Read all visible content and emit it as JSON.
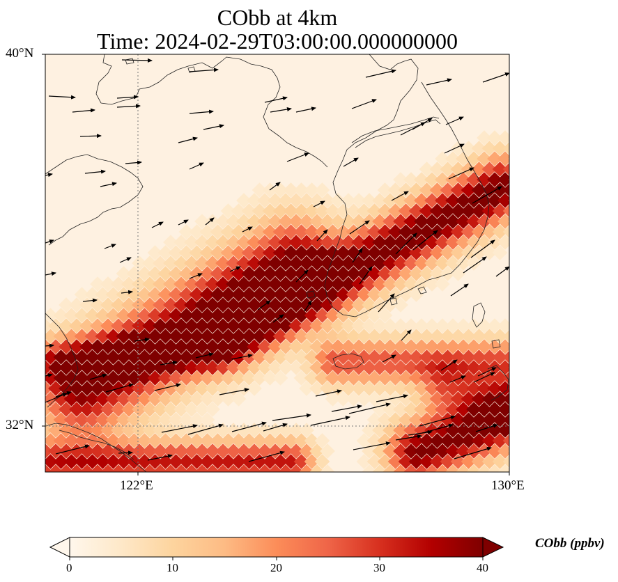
{
  "figure": {
    "title_line1": "CObb at 4km",
    "title_line2": "Time: 2024-02-29T03:00:00.000000000"
  },
  "map": {
    "lon_range": [
      119.5,
      130
    ],
    "lat_range": [
      31,
      40.2
    ],
    "lat_ticks": [
      "40°N",
      "32°N"
    ],
    "lon_ticks": [
      "122°E",
      "130°E"
    ],
    "gridlines": "dotted",
    "field_variable": "CObb",
    "colormap": "OrRd",
    "vectors": "wind arrows (black)"
  },
  "colorbar": {
    "label": "CObb (ppbv)",
    "tick_labels": [
      "0",
      "10",
      "20",
      "30",
      "40"
    ],
    "range": [
      0,
      40
    ],
    "extend": "both",
    "colors": [
      "#fff7ec",
      "#fee8c8",
      "#fdd49e",
      "#fdbb84",
      "#fc8d59",
      "#ef6548",
      "#d7301f",
      "#b30000",
      "#7f0000"
    ]
  }
}
